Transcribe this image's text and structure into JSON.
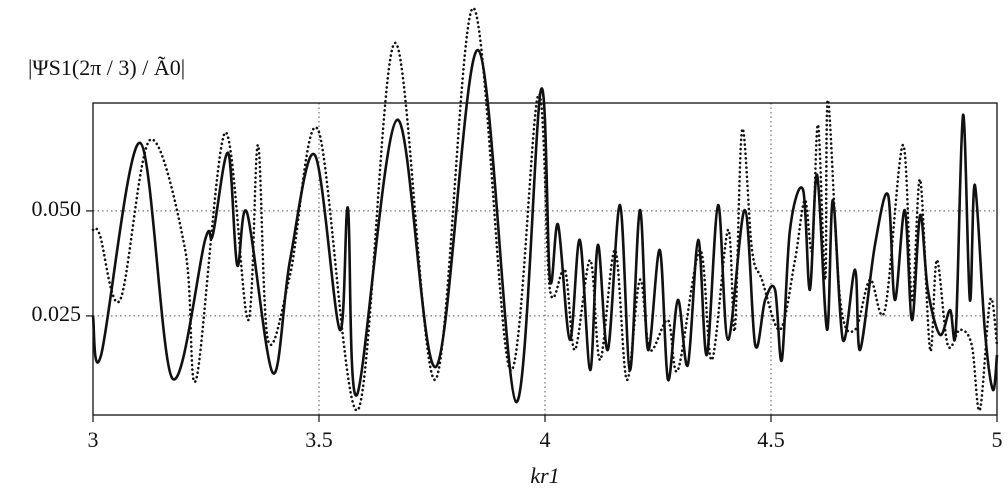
{
  "chart_data": {
    "type": "line",
    "ylabel": "|ΨS1(2π / 3) / Ã0|",
    "xlabel": "kr1",
    "xlim": [
      3,
      5
    ],
    "xticks": [
      3,
      3.5,
      4,
      4.5,
      5
    ],
    "ylim": [
      0.0014,
      0.0757
    ],
    "yticks": [
      0.025,
      {
        "value": 0.05,
        "label": "0.050"
      }
    ],
    "grid": true,
    "series": [
      {
        "color": "#111111",
        "linestyle": "solid",
        "x": [
          3.0,
          3.018,
          3.104,
          3.175,
          3.248,
          3.265,
          3.299,
          3.319,
          3.341,
          3.398,
          3.436,
          3.491,
          3.546,
          3.564,
          3.584,
          3.673,
          3.759,
          3.852,
          3.936,
          3.991,
          4.011,
          4.029,
          4.055,
          4.077,
          4.1,
          4.117,
          4.139,
          4.166,
          4.188,
          4.21,
          4.228,
          4.254,
          4.272,
          4.294,
          4.316,
          4.339,
          4.358,
          4.383,
          4.405,
          4.442,
          4.465,
          4.487,
          4.509,
          4.524,
          4.542,
          4.571,
          4.586,
          4.602,
          4.624,
          4.637,
          4.659,
          4.686,
          4.697,
          4.73,
          4.759,
          4.774,
          4.796,
          4.812,
          4.83,
          4.847,
          4.874,
          4.896,
          4.909,
          4.925,
          4.94,
          4.951,
          4.973,
          4.991,
          5.0
        ],
        "values": [
          0.025,
          0.0157,
          0.0662,
          0.0102,
          0.0431,
          0.0443,
          0.0638,
          0.0371,
          0.0495,
          0.0114,
          0.0383,
          0.0633,
          0.0217,
          0.0507,
          0.0062,
          0.0717,
          0.0129,
          0.0883,
          0.0045,
          0.0788,
          0.0336,
          0.0467,
          0.0193,
          0.0431,
          0.0121,
          0.0419,
          0.0169,
          0.0514,
          0.0121,
          0.0502,
          0.0169,
          0.0407,
          0.0098,
          0.0288,
          0.0133,
          0.0431,
          0.0157,
          0.0514,
          0.0193,
          0.0502,
          0.0181,
          0.0288,
          0.0312,
          0.0145,
          0.0455,
          0.055,
          0.0312,
          0.0586,
          0.0217,
          0.0526,
          0.0193,
          0.036,
          0.0169,
          0.0419,
          0.0538,
          0.0288,
          0.0502,
          0.024,
          0.049,
          0.0312,
          0.0205,
          0.0264,
          0.0217,
          0.0729,
          0.0288,
          0.0562,
          0.0217,
          0.0074,
          0.0157
        ]
      },
      {
        "color": "#111111",
        "linestyle": "dotted",
        "x": [
          3.0,
          3.015,
          3.06,
          3.126,
          3.204,
          3.228,
          3.292,
          3.343,
          3.365,
          3.387,
          3.436,
          3.498,
          3.586,
          3.668,
          3.757,
          3.841,
          3.923,
          3.985,
          4.011,
          4.044,
          4.066,
          4.1,
          4.122,
          4.155,
          4.181,
          4.21,
          4.232,
          4.272,
          4.294,
          4.343,
          4.369,
          4.405,
          4.42,
          4.436,
          4.458,
          4.48,
          4.52,
          4.553,
          4.575,
          4.591,
          4.604,
          4.62,
          4.626,
          4.653,
          4.686,
          4.719,
          4.752,
          4.792,
          4.812,
          4.83,
          4.852,
          4.867,
          4.891,
          4.918,
          4.944,
          4.962,
          4.985,
          5.0
        ],
        "values": [
          0.0455,
          0.0443,
          0.0288,
          0.0669,
          0.0407,
          0.0098,
          0.0686,
          0.024,
          0.0657,
          0.0193,
          0.0348,
          0.0693,
          0.0026,
          0.09,
          0.0098,
          0.0983,
          0.0121,
          0.0776,
          0.0312,
          0.036,
          0.0169,
          0.0383,
          0.0145,
          0.0407,
          0.0098,
          0.0336,
          0.0169,
          0.024,
          0.0121,
          0.0407,
          0.0145,
          0.0455,
          0.0217,
          0.0693,
          0.0407,
          0.0336,
          0.0217,
          0.0383,
          0.0526,
          0.0407,
          0.0705,
          0.0336,
          0.0764,
          0.0288,
          0.0217,
          0.0336,
          0.0264,
          0.0657,
          0.0288,
          0.0574,
          0.0169,
          0.0383,
          0.0181,
          0.0217,
          0.0181,
          0.0026,
          0.0288,
          0.0181
        ]
      }
    ]
  }
}
